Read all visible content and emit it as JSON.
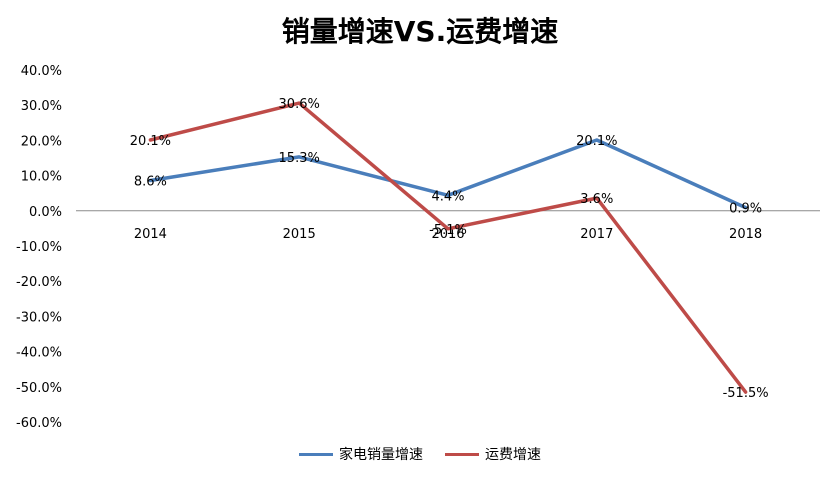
{
  "chart_data": {
    "type": "line",
    "title": "销量增速VS.运费增速",
    "categories": [
      "2014",
      "2015",
      "2016",
      "2017",
      "2018"
    ],
    "ylim": [
      -60,
      40
    ],
    "yticks": [
      "40.0%",
      "30.0%",
      "20.0%",
      "10.0%",
      "0.0%",
      "-10.0%",
      "-20.0%",
      "-30.0%",
      "-40.0%",
      "-50.0%",
      "-60.0%"
    ],
    "series": [
      {
        "name": "家电销量增速",
        "color": "#4A7EBB",
        "values": [
          8.6,
          15.3,
          4.4,
          20.1,
          0.9
        ],
        "labels": [
          "8.6%",
          "15.3%",
          "4.4%",
          "20.1%",
          "0.9%"
        ]
      },
      {
        "name": "运费增速",
        "color": "#BE4B48",
        "values": [
          20.1,
          30.6,
          -5.1,
          3.6,
          -51.5
        ],
        "labels": [
          "20.1%",
          "30.6%",
          "-5.1%",
          "3.6%",
          "-51.5%"
        ]
      }
    ],
    "legend_position": "bottom",
    "grid": false
  }
}
